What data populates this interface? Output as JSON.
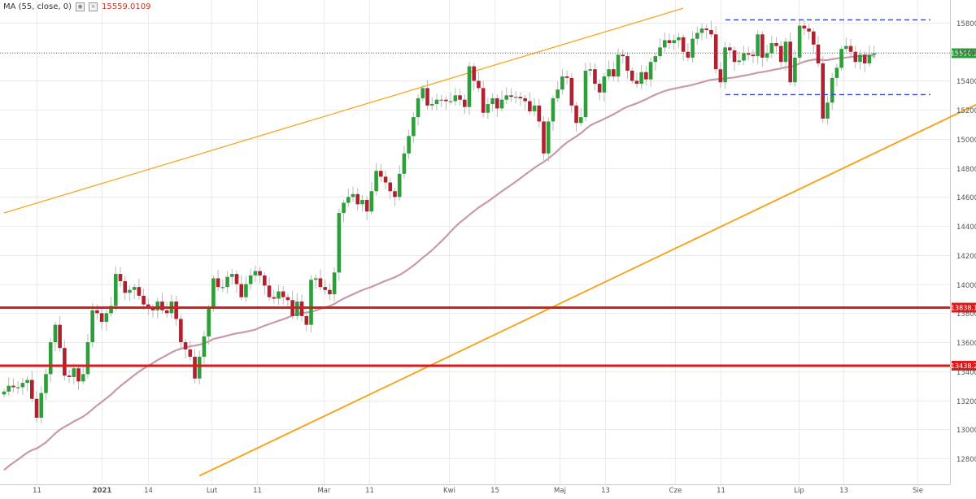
{
  "indicator": {
    "label": "MA (55, close, 0)",
    "eye_icon": "eye-icon",
    "close_icon": "close-icon",
    "value": "15559.0109"
  },
  "price_tag": {
    "text": "15590.2",
    "value": 15590.2,
    "color": "#2e9e3a"
  },
  "levels": [
    {
      "text": "13838.1",
      "value": 13838.1,
      "color": "#e0191b"
    },
    {
      "text": "13438.2",
      "value": 13438.2,
      "color": "#e0191b"
    }
  ],
  "colors": {
    "up": "#2e9e3a",
    "down": "#b0202e",
    "ma": "#c99aa5",
    "trend": "#f5a623",
    "range": "#3344cc",
    "grid": "#ebebeb"
  },
  "chart_data": {
    "type": "candlestick",
    "instrument_note": "",
    "x_ticks": [
      "11",
      "2021",
      "14",
      "Lut",
      "11",
      "Mar",
      "11",
      "Kwi",
      "15",
      "Maj",
      "13",
      "Cze",
      "11",
      "Lip",
      "13",
      "Sie"
    ],
    "y_ticks": [
      12800,
      13000,
      13200,
      13400,
      13600,
      13800,
      14000,
      14200,
      14400,
      14600,
      14800,
      15000,
      15200,
      15400,
      15600,
      15800
    ],
    "ylim": [
      12680,
      15900
    ],
    "horizontal_levels": [
      13838.1,
      13438.2
    ],
    "range_box": {
      "top": 15820,
      "bottom": 15305
    },
    "trendlines": [
      {
        "from": [
          0,
          14490
        ],
        "to": [
          146,
          15900
        ]
      },
      {
        "from": [
          42,
          12680
        ],
        "to": [
          219,
          15390
        ]
      }
    ],
    "ma_period": 55,
    "ma_last": 15559.0109,
    "closes": [
      13260,
      13300,
      13290,
      13290,
      13320,
      13340,
      13210,
      13080,
      13250,
      13380,
      13600,
      13720,
      13560,
      13370,
      13360,
      13420,
      13330,
      13380,
      13600,
      13820,
      13800,
      13740,
      13800,
      13850,
      14070,
      14020,
      13940,
      13960,
      13980,
      13920,
      13860,
      13830,
      13820,
      13880,
      13820,
      13800,
      13880,
      13760,
      13600,
      13550,
      13500,
      13350,
      13500,
      13640,
      13830,
      14040,
      13980,
      13980,
      14050,
      14070,
      14000,
      13910,
      14000,
      14060,
      14090,
      14060,
      13990,
      13910,
      13900,
      13950,
      13910,
      13890,
      13780,
      13880,
      13780,
      13720,
      14030,
      14040,
      13980,
      13960,
      13930,
      14080,
      14490,
      14560,
      14600,
      14620,
      14550,
      14580,
      14500,
      14640,
      14780,
      14740,
      14700,
      14640,
      14600,
      14760,
      14900,
      15020,
      15150,
      15280,
      15350,
      15230,
      15240,
      15270,
      15270,
      15260,
      15260,
      15300,
      15270,
      15220,
      15500,
      15400,
      15350,
      15180,
      15240,
      15280,
      15210,
      15270,
      15300,
      15290,
      15290,
      15280,
      15260,
      15190,
      15230,
      15120,
      14900,
      15120,
      15280,
      15340,
      15430,
      15420,
      15230,
      15110,
      15150,
      15470,
      15480,
      15380,
      15320,
      15430,
      15480,
      15430,
      15580,
      15570,
      15470,
      15400,
      15380,
      15460,
      15410,
      15530,
      15570,
      15630,
      15680,
      15660,
      15680,
      15700,
      15600,
      15560,
      15690,
      15730,
      15760,
      15750,
      15720,
      15480,
      15390,
      15630,
      15610,
      15530,
      15540,
      15590,
      15580,
      15570,
      15720,
      15560,
      15590,
      15660,
      15640,
      15530,
      15670,
      15390,
      15560,
      15780,
      15760,
      15740,
      15650,
      15520,
      15140,
      15250,
      15420,
      15490,
      15620,
      15640,
      15600,
      15530,
      15580,
      15520,
      15580,
      15590
    ]
  }
}
